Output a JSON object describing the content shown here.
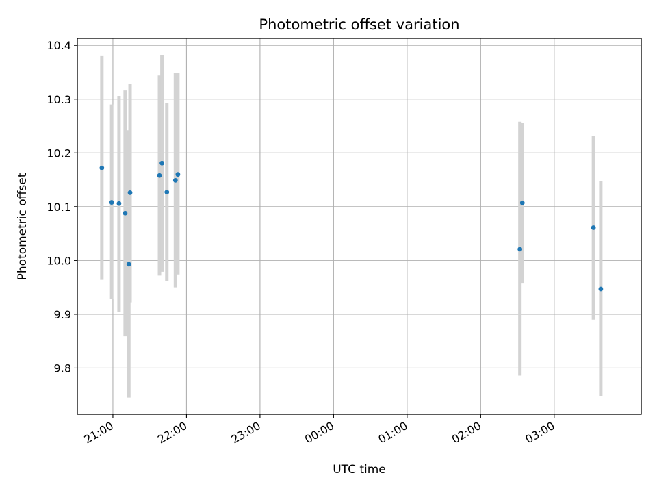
{
  "chart_data": {
    "type": "scatter",
    "title": "Photometric offset variation",
    "xlabel": "UTC time",
    "ylabel": "Photometric offset",
    "x_tick_labels": [
      "21:00",
      "22:00",
      "23:00",
      "00:00",
      "01:00",
      "02:00",
      "03:00"
    ],
    "y_tick_labels": [
      "9.8",
      "9.9",
      "10.0",
      "10.1",
      "10.2",
      "10.3",
      "10.4"
    ],
    "y_ticks": [
      9.8,
      9.9,
      10.0,
      10.1,
      10.2,
      10.3,
      10.4
    ],
    "x_ticks": [
      "21:00",
      "22:00",
      "23:00",
      "00:00",
      "01:00",
      "02:00",
      "03:00"
    ],
    "xlim": [
      "20:31",
      "04:11"
    ],
    "ylim": [
      9.714,
      10.413
    ],
    "grid": true,
    "colors": {
      "points": "#1f77b4",
      "errorbars": "#d3d3d3",
      "grid": "#b0b0b0"
    },
    "points": [
      {
        "x": "20:51",
        "y": 10.172,
        "ylow": 9.964,
        "yhigh": 10.38
      },
      {
        "x": "20:59",
        "y": 10.108,
        "ylow": 9.928,
        "yhigh": 10.29
      },
      {
        "x": "21:05",
        "y": 10.106,
        "ylow": 9.904,
        "yhigh": 10.306
      },
      {
        "x": "21:10",
        "y": 10.088,
        "ylow": 9.859,
        "yhigh": 10.316
      },
      {
        "x": "21:13",
        "y": 9.993,
        "ylow": 9.745,
        "yhigh": 10.242
      },
      {
        "x": "21:14",
        "y": 10.126,
        "ylow": 9.922,
        "yhigh": 10.328
      },
      {
        "x": "21:38",
        "y": 10.158,
        "ylow": 9.972,
        "yhigh": 10.344
      },
      {
        "x": "21:40",
        "y": 10.181,
        "ylow": 9.979,
        "yhigh": 10.382
      },
      {
        "x": "21:44",
        "y": 10.127,
        "ylow": 9.962,
        "yhigh": 10.293
      },
      {
        "x": "21:51",
        "y": 10.149,
        "ylow": 9.95,
        "yhigh": 10.348
      },
      {
        "x": "21:53",
        "y": 10.16,
        "ylow": 9.974,
        "yhigh": 10.348
      },
      {
        "x": "02:32",
        "y": 10.021,
        "ylow": 9.786,
        "yhigh": 10.258
      },
      {
        "x": "02:34",
        "y": 10.107,
        "ylow": 9.957,
        "yhigh": 10.256
      },
      {
        "x": "03:32",
        "y": 10.061,
        "ylow": 9.89,
        "yhigh": 10.231
      },
      {
        "x": "03:38",
        "y": 9.947,
        "ylow": 9.748,
        "yhigh": 10.147
      }
    ]
  }
}
